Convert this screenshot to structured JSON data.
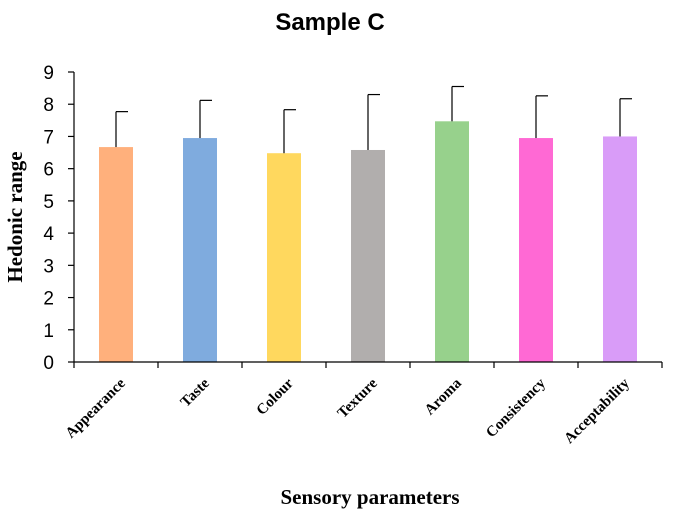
{
  "chart_data": {
    "type": "bar",
    "title": "Sample C",
    "xlabel": "Sensory parameters",
    "ylabel": "Hedonic range",
    "ylim": [
      0,
      9
    ],
    "yticks": [
      0,
      1,
      2,
      3,
      4,
      5,
      6,
      7,
      8,
      9
    ],
    "grid": false,
    "categories": [
      "Appearance",
      "Taste",
      "Colour",
      "Texture",
      "Aroma",
      "Consistency",
      "Acceptability"
    ],
    "values": [
      6.67,
      6.95,
      6.48,
      6.58,
      7.47,
      6.95,
      7.0
    ],
    "errors": [
      1.1,
      1.17,
      1.35,
      1.72,
      1.08,
      1.31,
      1.17
    ],
    "colors": [
      "#FFB07C",
      "#7FABDE",
      "#FFD85E",
      "#B1AEAD",
      "#97D18C",
      "#FF69D4",
      "#D99CF8"
    ]
  }
}
